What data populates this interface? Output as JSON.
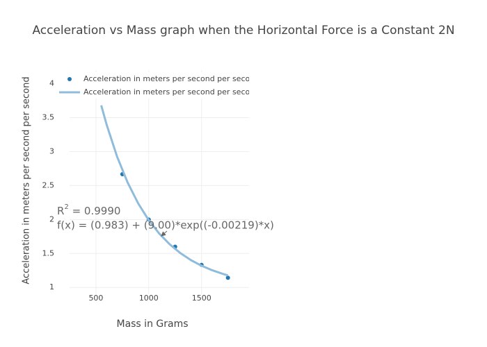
{
  "chart_data": {
    "type": "scatter",
    "title": "Acceleration vs Mass graph when the Horizontal Force is a Constant 2N",
    "x_label": "Mass in Grams",
    "y_label": "Acceleration in meters per second per second",
    "xlim": [
      250,
      1950
    ],
    "ylim": [
      0.9,
      4.2
    ],
    "xticks": [
      500,
      1000,
      1500
    ],
    "yticks": [
      1,
      1.5,
      2,
      2.5,
      3,
      3.5,
      4
    ],
    "grid": true,
    "legend": "top-left",
    "series": [
      {
        "name": "Acceleration in meters per second per second",
        "mode": "markers",
        "color": "#1f77b4",
        "x": [
          750,
          1000,
          1250,
          1500,
          1750
        ],
        "values": [
          2.667,
          2.0,
          1.6,
          1.333,
          1.143
        ]
      },
      {
        "name": "Acceleration in meters per second per second",
        "mode": "lines",
        "color": "#8fbcdb",
        "x": [
          550,
          600,
          700,
          800,
          900,
          1000,
          1100,
          1200,
          1300,
          1400,
          1500,
          1600,
          1700,
          1750
        ],
        "values": [
          3.681,
          3.402,
          2.926,
          2.544,
          2.237,
          1.99,
          1.792,
          1.633,
          1.505,
          1.402,
          1.32,
          1.254,
          1.201,
          1.178
        ]
      }
    ],
    "annotation": {
      "r_label": "R",
      "r_power": "2",
      "r_text": " = 0.9990",
      "formula": "f(x) = (0.983) + (9.00)*exp((-0.00219)*x)",
      "x": 1118,
      "y": 1.757
    }
  }
}
